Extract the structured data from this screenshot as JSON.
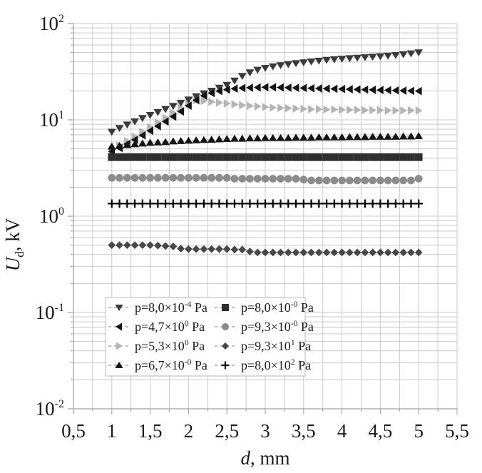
{
  "chart_data": {
    "type": "scatter",
    "title": "",
    "xlabel": {
      "variable": "d",
      "rest": ", mm",
      "full": "d, mm"
    },
    "ylabel": {
      "variable": "U",
      "subscript": "d",
      "rest": ", kV",
      "full": "Ud, kV"
    },
    "x_axis": {
      "scale": "linear",
      "xlim": [
        0.5,
        5.5
      ],
      "grid_step": 0.25,
      "tick_labels": [
        {
          "value": 0.5,
          "label": "0,5"
        },
        {
          "value": 1.0,
          "label": "1"
        },
        {
          "value": 1.5,
          "label": "1,5"
        },
        {
          "value": 2.0,
          "label": "2"
        },
        {
          "value": 2.5,
          "label": "2,5"
        },
        {
          "value": 3.0,
          "label": "3"
        },
        {
          "value": 3.5,
          "label": "3,5"
        },
        {
          "value": 4.0,
          "label": "4"
        },
        {
          "value": 4.5,
          "label": "4,5"
        },
        {
          "value": 5.0,
          "label": "5"
        },
        {
          "value": 5.5,
          "label": "5,5"
        }
      ]
    },
    "y_axis": {
      "scale": "log",
      "ylim_log10": [
        -2,
        2
      ],
      "tick_labels": [
        {
          "base": "10",
          "exponent": "2"
        },
        {
          "base": "10",
          "exponent": "1"
        },
        {
          "base": "10",
          "exponent": "0"
        },
        {
          "base": "10",
          "exponent": "-1"
        },
        {
          "base": "10",
          "exponent": "-2"
        }
      ]
    },
    "grid": true,
    "legend": {
      "position": "inside-bottom-center",
      "columns": 2,
      "rows": 4
    },
    "x_values": [
      1.0,
      1.1,
      1.2,
      1.3,
      1.4,
      1.5,
      1.6,
      1.7,
      1.8,
      1.9,
      2.0,
      2.1,
      2.2,
      2.3,
      2.4,
      2.5,
      2.6,
      2.7,
      2.8,
      2.9,
      3.0,
      3.1,
      3.2,
      3.3,
      3.4,
      3.5,
      3.6,
      3.7,
      3.8,
      3.9,
      4.0,
      4.1,
      4.2,
      4.3,
      4.4,
      4.5,
      4.6,
      4.7,
      4.8,
      4.9,
      5.0
    ],
    "series": [
      {
        "label": "p=8,0×10-4 Pa",
        "label_base": "p=8,0×10",
        "label_sup": "-4",
        "label_unit": " Pa",
        "marker": "triangle-down",
        "color": "#3a3a3a",
        "values": [
          7.5,
          8.2,
          8.9,
          9.6,
          10.4,
          11.2,
          12.0,
          12.9,
          13.9,
          15.0,
          16.2,
          17.5,
          18.8,
          20.0,
          21.5,
          23.0,
          25.5,
          28.5,
          31.0,
          33.0,
          34.5,
          35.8,
          36.8,
          37.8,
          38.6,
          39.4,
          40.2,
          41.0,
          41.8,
          42.4,
          43.0,
          43.5,
          44.0,
          44.5,
          45.0,
          45.6,
          46.2,
          47.0,
          47.8,
          48.8,
          50.0
        ]
      },
      {
        "label": "p=4,7×100 Pa",
        "label_base": "p=4,7×10",
        "label_sup": "0",
        "label_unit": " Pa",
        "marker": "triangle-left",
        "color": "#141414",
        "values": [
          4.7,
          5.1,
          5.6,
          6.2,
          6.9,
          7.7,
          8.6,
          9.6,
          10.8,
          12.2,
          14.0,
          16.0,
          17.8,
          19.0,
          19.9,
          20.6,
          21.1,
          21.4,
          21.6,
          21.7,
          21.8,
          21.8,
          21.7,
          21.6,
          21.5,
          21.4,
          21.3,
          21.2,
          21.1,
          21.0,
          20.9,
          20.8,
          20.7,
          20.6,
          20.5,
          20.4,
          20.3,
          20.2,
          20.1,
          20.0,
          19.9
        ]
      },
      {
        "label": "p=5,3×100 Pa",
        "label_base": "p=5,3×10",
        "label_sup": "0",
        "label_unit": " Pa",
        "marker": "triangle-right",
        "color": "#b4b4b4",
        "values": [
          4.9,
          5.4,
          6.0,
          6.7,
          7.5,
          8.4,
          9.4,
          10.5,
          11.8,
          13.3,
          15.2,
          16.0,
          15.7,
          15.4,
          15.1,
          14.8,
          14.5,
          14.2,
          14.0,
          13.8,
          13.6,
          13.4,
          13.3,
          13.2,
          13.1,
          13.0,
          12.9,
          12.9,
          12.8,
          12.8,
          12.7,
          12.7,
          12.7,
          12.6,
          12.6,
          12.6,
          12.5,
          12.5,
          12.5,
          12.5,
          12.5
        ]
      },
      {
        "label": "p=6,7×10-0 Pa",
        "label_base": "p=6,7×10",
        "label_sup": "-0",
        "label_unit": " Pa",
        "marker": "triangle-up",
        "color": "#141414",
        "values": [
          5.3,
          5.4,
          5.5,
          5.6,
          5.7,
          5.8,
          5.85,
          5.9,
          6.0,
          6.05,
          6.1,
          6.15,
          6.2,
          6.25,
          6.3,
          6.35,
          6.4,
          6.4,
          6.45,
          6.45,
          6.5,
          6.5,
          6.5,
          6.5,
          6.55,
          6.55,
          6.55,
          6.6,
          6.6,
          6.6,
          6.6,
          6.65,
          6.65,
          6.65,
          6.7,
          6.7,
          6.7,
          6.7,
          6.75,
          6.75,
          6.8
        ]
      },
      {
        "label": "p=8,0×10-0 Pa",
        "label_base": "p=8,0×10",
        "label_sup": "-0",
        "label_unit": " Pa",
        "marker": "square",
        "color": "#2f2f2f",
        "values": [
          4.1,
          4.1,
          4.1,
          4.1,
          4.1,
          4.1,
          4.1,
          4.1,
          4.1,
          4.1,
          4.1,
          4.1,
          4.1,
          4.1,
          4.1,
          4.1,
          4.1,
          4.1,
          4.1,
          4.1,
          4.1,
          4.1,
          4.1,
          4.1,
          4.1,
          4.1,
          4.1,
          4.1,
          4.1,
          4.1,
          4.1,
          4.1,
          4.1,
          4.1,
          4.1,
          4.1,
          4.1,
          4.1,
          4.1,
          4.1,
          4.1
        ]
      },
      {
        "label": "p=9,3×10-0 Pa",
        "label_base": "p=9,3×10",
        "label_sup": "-0",
        "label_unit": " Pa",
        "marker": "circle",
        "color": "#8c8c8c",
        "values": [
          2.5,
          2.5,
          2.5,
          2.5,
          2.5,
          2.5,
          2.5,
          2.5,
          2.5,
          2.5,
          2.5,
          2.5,
          2.5,
          2.5,
          2.5,
          2.5,
          2.45,
          2.45,
          2.45,
          2.45,
          2.45,
          2.45,
          2.45,
          2.45,
          2.45,
          2.4,
          2.35,
          2.35,
          2.35,
          2.35,
          2.35,
          2.35,
          2.35,
          2.35,
          2.35,
          2.35,
          2.35,
          2.35,
          2.35,
          2.35,
          2.45
        ]
      },
      {
        "label": "p=9,3×101 Pa",
        "label_base": "p=9,3×10",
        "label_sup": "1",
        "label_unit": " Pa",
        "marker": "diamond",
        "color": "#474747",
        "values": [
          0.5,
          0.5,
          0.5,
          0.5,
          0.5,
          0.5,
          0.495,
          0.49,
          0.485,
          0.46,
          0.455,
          0.455,
          0.455,
          0.455,
          0.455,
          0.455,
          0.45,
          0.45,
          0.43,
          0.42,
          0.42,
          0.42,
          0.42,
          0.42,
          0.42,
          0.42,
          0.42,
          0.42,
          0.42,
          0.42,
          0.42,
          0.42,
          0.42,
          0.42,
          0.42,
          0.42,
          0.42,
          0.42,
          0.42,
          0.42,
          0.42
        ]
      },
      {
        "label": "p=8,0×102 Pa",
        "label_base": "p=8,0×10",
        "label_sup": "2",
        "label_unit": " Pa",
        "marker": "plus",
        "color": "#000000",
        "values": [
          1.35,
          1.35,
          1.35,
          1.35,
          1.35,
          1.35,
          1.35,
          1.35,
          1.35,
          1.35,
          1.35,
          1.35,
          1.35,
          1.35,
          1.35,
          1.35,
          1.35,
          1.35,
          1.35,
          1.35,
          1.35,
          1.35,
          1.35,
          1.35,
          1.35,
          1.35,
          1.35,
          1.35,
          1.35,
          1.35,
          1.35,
          1.35,
          1.35,
          1.35,
          1.35,
          1.35,
          1.35,
          1.35,
          1.35,
          1.35,
          1.35
        ]
      }
    ]
  },
  "colors": {
    "background": "#ffffff",
    "grid": "#c9c9c9",
    "axis": "#9e9e9e",
    "text": "#1a1a1a",
    "connector": "#c2c2c2",
    "legend_border": "#b5b5b5",
    "legend_dash": "#9b9b9b"
  }
}
